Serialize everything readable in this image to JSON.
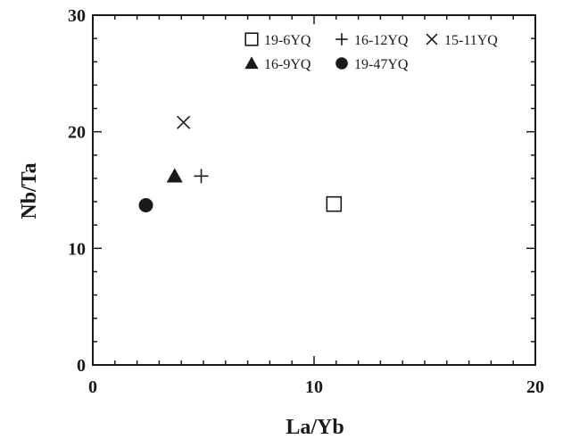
{
  "chart_data": {
    "type": "scatter",
    "title": "",
    "xlabel": "La/Yb",
    "ylabel": "Nb/Ta",
    "xlim": [
      0,
      20
    ],
    "ylim": [
      0,
      30
    ],
    "xticks": [
      0,
      10,
      20
    ],
    "yticks": [
      0,
      10,
      20,
      30
    ],
    "x_minor_step": 1,
    "y_minor_step": 2,
    "grid": false,
    "legend_position": "top-right",
    "series": [
      {
        "name": "19-6YQ",
        "marker": "square-open",
        "x": [
          10.9
        ],
        "y": [
          13.8
        ]
      },
      {
        "name": "16-12YQ",
        "marker": "plus",
        "x": [
          4.9
        ],
        "y": [
          16.2
        ]
      },
      {
        "name": "15-11YQ",
        "marker": "cross",
        "x": [
          4.1
        ],
        "y": [
          20.8
        ]
      },
      {
        "name": "16-9YQ",
        "marker": "triangle-filled",
        "x": [
          3.7
        ],
        "y": [
          16.2
        ]
      },
      {
        "name": "19-47YQ",
        "marker": "circle-filled",
        "x": [
          2.4
        ],
        "y": [
          13.7
        ]
      }
    ],
    "colors": {
      "marker": "#1a1a1a",
      "axis": "#1a1a1a"
    }
  }
}
